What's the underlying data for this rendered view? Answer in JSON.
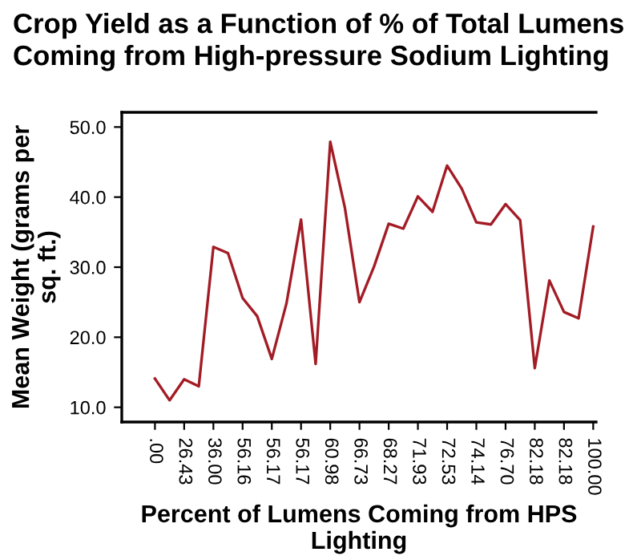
{
  "chart_data": {
    "type": "line",
    "title": "Crop Yield as a Function of % of Total Lumens\nComing from High-pressure Sodium Lighting",
    "xlabel": "Percent of Lumens Coming from HPS\nLighting",
    "ylabel": "Mean Weight (grams per\nsq. ft.)",
    "categories": [
      ".00",
      null,
      "26.43",
      null,
      "36.00",
      null,
      "56.16",
      null,
      "56.17",
      null,
      "56.17",
      null,
      "60.98",
      null,
      "66.73",
      null,
      "68.27",
      null,
      "71.93",
      null,
      "72.53",
      null,
      "74.14",
      null,
      "76.70",
      null,
      "82.18",
      null,
      "82.18",
      null,
      "100.00"
    ],
    "series": [
      {
        "color": "#a31c25",
        "values": [
          14.1,
          11.0,
          14.0,
          13.0,
          32.9,
          32.0,
          25.6,
          23.0,
          16.9,
          24.8,
          36.8,
          16.2,
          47.9,
          38.5,
          25.0,
          30.1,
          36.2,
          35.5,
          40.1,
          37.9,
          44.5,
          41.2,
          36.4,
          36.1,
          39.0,
          36.7,
          15.6,
          28.1,
          23.6,
          22.7,
          35.8
        ]
      }
    ],
    "ylim": [
      7.9,
      52.1
    ],
    "yticks": [
      {
        "value": 10,
        "label": "10.0"
      },
      {
        "value": 20,
        "label": "20.0"
      },
      {
        "value": 30,
        "label": "30.0"
      },
      {
        "value": 40,
        "label": "40.0"
      },
      {
        "value": 50,
        "label": "50.0"
      }
    ],
    "grid": false,
    "legend": false,
    "marker": "none",
    "line_style": "solid"
  }
}
